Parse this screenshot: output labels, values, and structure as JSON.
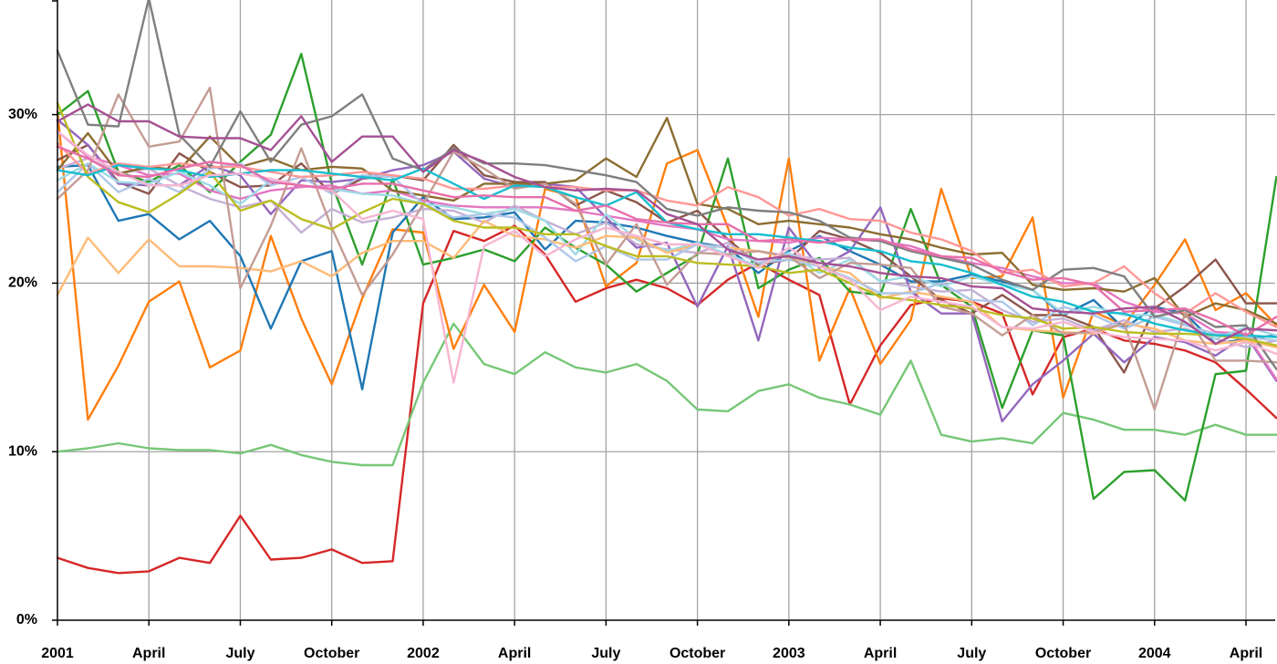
{
  "chart_data": {
    "type": "line",
    "title": "",
    "xlabel": "",
    "ylabel": "",
    "x": [
      "2001-01",
      "2001-02",
      "2001-03",
      "2001-04",
      "2001-05",
      "2001-06",
      "2001-07",
      "2001-08",
      "2001-09",
      "2001-10",
      "2001-11",
      "2001-12",
      "2002-01",
      "2002-02",
      "2002-03",
      "2002-04",
      "2002-05",
      "2002-06",
      "2002-07",
      "2002-08",
      "2002-09",
      "2002-10",
      "2002-11",
      "2002-12",
      "2003-01",
      "2003-02",
      "2003-03",
      "2003-04",
      "2003-05",
      "2003-06",
      "2003-07",
      "2003-08",
      "2003-09",
      "2003-10",
      "2003-11",
      "2003-12",
      "2004-01",
      "2004-02",
      "2004-03",
      "2004-04",
      "2004-05"
    ],
    "x_ticks": [
      {
        "label": "2001",
        "x": "2001-01"
      },
      {
        "label": "April",
        "x": "2001-04"
      },
      {
        "label": "July",
        "x": "2001-07"
      },
      {
        "label": "October",
        "x": "2001-10"
      },
      {
        "label": "2002",
        "x": "2002-01"
      },
      {
        "label": "April",
        "x": "2002-04"
      },
      {
        "label": "July",
        "x": "2002-07"
      },
      {
        "label": "October",
        "x": "2002-10"
      },
      {
        "label": "2003",
        "x": "2003-01"
      },
      {
        "label": "April",
        "x": "2003-04"
      },
      {
        "label": "July",
        "x": "2003-07"
      },
      {
        "label": "October",
        "x": "2003-10"
      },
      {
        "label": "2004",
        "x": "2004-01"
      },
      {
        "label": "April",
        "x": "2004-04"
      }
    ],
    "y_ticks": [
      {
        "label": "0%",
        "value": 0
      },
      {
        "label": "10%",
        "value": 10
      },
      {
        "label": "20%",
        "value": 20
      },
      {
        "label": "30%",
        "value": 30
      }
    ],
    "ylim": [
      0,
      36.8
    ],
    "x_grid": true,
    "y_grid": true,
    "legend": "none",
    "series": [
      {
        "color": "#d62728",
        "values": [
          3.7,
          3.1,
          2.8,
          2.9,
          3.7,
          3.4,
          6.2,
          3.6,
          3.7,
          4.2,
          3.4,
          3.5,
          18.8,
          23.1,
          22.5,
          23.4,
          21.7,
          18.9,
          19.7,
          20.2,
          19.7,
          18.7,
          20.2,
          21.2,
          20.2,
          19.3,
          12.8,
          16.3,
          18.7,
          19.1,
          18.9,
          18.2,
          13.4,
          16.8,
          17.3,
          16.6,
          16.4,
          16.0,
          15.3,
          13.7,
          12.0
        ]
      },
      {
        "color": "#77c777",
        "values": [
          10.0,
          10.2,
          10.5,
          10.2,
          10.1,
          10.1,
          9.9,
          10.4,
          9.8,
          9.4,
          9.2,
          9.2,
          14.1,
          17.6,
          15.2,
          14.6,
          15.9,
          15.0,
          14.7,
          15.2,
          14.2,
          12.5,
          12.4,
          13.6,
          14.0,
          13.2,
          12.8,
          12.2,
          15.4,
          11.0,
          10.6,
          10.8,
          10.5,
          12.3,
          11.9,
          11.3,
          11.3,
          11.0,
          11.6,
          11.0,
          11.0
        ]
      },
      {
        "color": "#ff7f0e",
        "values": [
          30.2,
          11.9,
          15.1,
          18.9,
          20.1,
          15.0,
          16.0,
          22.8,
          17.9,
          14.0,
          19.1,
          23.2,
          23.0,
          16.1,
          19.9,
          17.1,
          25.6,
          25.1,
          19.8,
          21.2,
          27.1,
          27.9,
          23.3,
          18.0,
          27.4,
          15.4,
          19.7,
          15.2,
          17.8,
          25.6,
          20.3,
          20.4,
          23.9,
          13.2,
          18.3,
          17.5,
          19.9,
          22.6,
          18.4,
          19.4,
          17.5
        ]
      },
      {
        "color": "#2ca02c",
        "values": [
          30.0,
          31.4,
          26.6,
          26.0,
          27.0,
          25.4,
          27.2,
          28.8,
          33.6,
          25.9,
          21.1,
          26.2,
          21.1,
          21.5,
          22.0,
          21.3,
          23.3,
          22.1,
          21.1,
          19.5,
          20.6,
          21.7,
          27.4,
          19.7,
          20.8,
          21.5,
          19.5,
          19.3,
          24.4,
          19.9,
          18.6,
          12.6,
          17.2,
          16.9,
          7.2,
          8.8,
          8.9,
          7.1,
          14.6,
          14.8,
          26.3
        ]
      },
      {
        "color": "#1f77b4",
        "values": [
          26.9,
          27.0,
          23.7,
          24.1,
          22.6,
          23.7,
          21.6,
          17.3,
          21.3,
          21.9,
          13.7,
          23.0,
          25.1,
          23.8,
          23.9,
          24.2,
          22.0,
          23.7,
          23.6,
          23.3,
          22.8,
          22.4,
          22.1,
          20.6,
          21.9,
          22.8,
          21.9,
          21.1,
          20.1,
          20.1,
          20.5,
          20.1,
          19.6,
          18.1,
          19.0,
          17.3,
          18.6,
          18.2,
          16.4,
          16.7,
          16.9
        ]
      },
      {
        "color": "#8c564b",
        "values": [
          27.3,
          28.2,
          26.0,
          25.3,
          27.7,
          26.6,
          25.7,
          25.8,
          27.1,
          25.3,
          26.2,
          26.4,
          26.1,
          28.2,
          26.4,
          26.0,
          26.0,
          24.6,
          25.5,
          24.8,
          23.6,
          24.3,
          22.6,
          21.1,
          21.4,
          23.1,
          22.6,
          21.8,
          20.4,
          19.0,
          18.2,
          19.3,
          18.1,
          18.1,
          17.4,
          14.7,
          18.5,
          19.8,
          21.4,
          18.8,
          18.8
        ]
      },
      {
        "color": "#9467bd",
        "values": [
          29.7,
          28.2,
          25.9,
          25.8,
          25.8,
          27.0,
          26.4,
          24.1,
          26.1,
          26.0,
          26.2,
          26.7,
          27.0,
          27.8,
          26.2,
          25.7,
          25.9,
          25.7,
          23.9,
          22.1,
          22.4,
          18.6,
          22.2,
          16.6,
          23.3,
          20.9,
          21.9,
          24.5,
          19.5,
          18.2,
          18.2,
          11.8,
          14.0,
          15.4,
          17.0,
          15.3,
          16.8,
          16.5,
          15.7,
          16.9,
          14.2
        ]
      },
      {
        "color": "#e377c2",
        "values": [
          29.0,
          27.5,
          27.0,
          26.4,
          26.5,
          25.5,
          25.0,
          25.5,
          25.7,
          25.8,
          25.3,
          25.5,
          24.9,
          24.6,
          24.5,
          24.5,
          24.5,
          24.3,
          24.0,
          23.7,
          23.4,
          23.2,
          22.6,
          22.5,
          22.4,
          22.7,
          22.6,
          22.5,
          22.2,
          21.6,
          21.2,
          20.9,
          20.4,
          20.0,
          20.0,
          18.9,
          18.3,
          18.2,
          17.1,
          17.0,
          14.3
        ]
      },
      {
        "color": "#c5b0d5",
        "values": [
          26.8,
          27.4,
          26.5,
          26.8,
          25.8,
          25.0,
          24.5,
          24.9,
          23.0,
          24.4,
          23.6,
          23.9,
          24.4,
          24.3,
          23.6,
          24.6,
          23.7,
          22.9,
          23.6,
          22.3,
          22.0,
          21.8,
          22.4,
          21.2,
          21.7,
          21.4,
          21.5,
          20.1,
          19.8,
          19.5,
          19.6,
          18.4,
          17.7,
          17.9,
          17.2,
          17.8,
          17.1,
          17.3,
          16.7,
          16.2,
          16.6
        ]
      },
      {
        "color": "#8c6d31",
        "values": [
          26.7,
          28.9,
          26.5,
          26.9,
          26.7,
          28.7,
          26.9,
          27.4,
          26.7,
          26.9,
          26.8,
          25.5,
          25.2,
          24.9,
          25.9,
          25.9,
          25.9,
          26.1,
          27.4,
          26.3,
          29.8,
          24.7,
          24.4,
          23.5,
          23.7,
          23.5,
          23.3,
          22.9,
          22.6,
          22.1,
          21.7,
          21.8,
          19.9,
          19.6,
          19.7,
          19.5,
          20.3,
          18.0,
          18.8,
          18.4,
          17.6
        ]
      },
      {
        "color": "#9edae5",
        "values": [
          26.1,
          27.1,
          26.0,
          25.9,
          26.6,
          25.8,
          24.7,
          26.1,
          25.8,
          25.6,
          25.3,
          25.2,
          24.7,
          24.5,
          24.1,
          24.4,
          23.7,
          21.7,
          24.1,
          22.6,
          21.9,
          22.4,
          21.7,
          21.0,
          21.8,
          20.6,
          21.4,
          20.1,
          20.4,
          19.8,
          20.4,
          19.9,
          19.6,
          18.2,
          18.6,
          18.1,
          18.1,
          17.6,
          16.7,
          17.4,
          16.9
        ]
      },
      {
        "color": "#ffbb78",
        "values": [
          19.3,
          22.7,
          20.6,
          22.6,
          21.0,
          21.0,
          20.9,
          20.7,
          21.3,
          20.4,
          21.8,
          22.5,
          22.5,
          21.5,
          23.7,
          22.8,
          22.6,
          22.1,
          22.8,
          22.7,
          21.8,
          22.3,
          22.1,
          21.9,
          21.5,
          21.0,
          20.6,
          19.1,
          19.5,
          19.2,
          18.9,
          17.4,
          17.2,
          17.1,
          17.0,
          17.6,
          17.3,
          16.6,
          16.4,
          16.6,
          16.2
        ]
      },
      {
        "color": "#aec7e8",
        "values": [
          25.4,
          27.1,
          25.4,
          26.2,
          25.4,
          26.8,
          27.1,
          25.8,
          26.3,
          25.3,
          26.4,
          26.3,
          24.7,
          23.9,
          24.1,
          23.9,
          22.7,
          21.3,
          22.2,
          21.4,
          21.4,
          22.3,
          22.1,
          21.2,
          21.4,
          21.0,
          20.3,
          19.4,
          19.4,
          20.0,
          19.0,
          18.9,
          17.5,
          18.6,
          18.1,
          17.3,
          18.0,
          17.5,
          17.0,
          16.8,
          16.6
        ]
      },
      {
        "color": "#ff9896",
        "values": [
          28.3,
          26.5,
          27.1,
          26.9,
          27.1,
          26.9,
          26.9,
          26.6,
          26.3,
          26.4,
          26.6,
          26.4,
          26.2,
          25.6,
          25.6,
          25.8,
          25.7,
          25.7,
          25.5,
          25.5,
          24.9,
          24.6,
          25.7,
          25.1,
          24.0,
          24.4,
          23.8,
          23.7,
          23.0,
          22.6,
          21.9,
          20.6,
          20.8,
          19.8,
          20.0,
          21.0,
          19.4,
          18.2,
          19.4,
          18.3,
          17.4
        ]
      },
      {
        "color": "#c49c94",
        "values": [
          25.0,
          26.7,
          31.2,
          28.1,
          28.4,
          31.6,
          19.7,
          23.4,
          28.0,
          23.3,
          19.3,
          21.7,
          24.7,
          27.8,
          26.8,
          25.6,
          25.9,
          24.7,
          21.1,
          23.5,
          19.9,
          21.8,
          21.7,
          21.9,
          21.6,
          20.3,
          21.2,
          21.1,
          20.9,
          18.6,
          18.2,
          16.9,
          18.1,
          17.0,
          17.1,
          17.6,
          12.5,
          18.2,
          15.4,
          15.4,
          15.3
        ]
      },
      {
        "color": "#7f7f7f",
        "values": [
          33.8,
          29.4,
          29.3,
          36.9,
          28.8,
          26.9,
          30.2,
          27.2,
          29.4,
          29.9,
          31.2,
          27.4,
          26.7,
          28.0,
          27.1,
          27.1,
          27.0,
          26.7,
          26.4,
          26.0,
          24.4,
          24.0,
          24.5,
          24.3,
          24.2,
          23.7,
          22.7,
          22.5,
          21.9,
          21.5,
          21.1,
          20.2,
          19.6,
          20.8,
          20.9,
          20.4,
          18.0,
          18.4,
          17.4,
          17.5,
          14.9
        ]
      },
      {
        "color": "#bcbd22",
        "values": [
          30.7,
          26.3,
          24.8,
          24.2,
          25.3,
          26.6,
          24.3,
          24.9,
          23.8,
          23.2,
          24.2,
          25.0,
          24.7,
          23.7,
          23.3,
          23.3,
          22.9,
          22.9,
          22.2,
          21.6,
          21.6,
          21.2,
          21.1,
          21.0,
          20.6,
          20.8,
          20.0,
          19.2,
          19.0,
          18.7,
          18.5,
          18.1,
          17.9,
          17.3,
          17.4,
          17.1,
          17.0,
          17.0,
          16.9,
          16.7,
          16.3
        ]
      },
      {
        "color": "#17becf",
        "values": [
          26.7,
          26.4,
          27.0,
          26.8,
          26.7,
          26.3,
          26.5,
          26.7,
          26.7,
          26.5,
          26.3,
          26.1,
          26.8,
          25.9,
          25.0,
          25.8,
          25.7,
          25.1,
          24.6,
          25.4,
          23.6,
          23.2,
          22.9,
          22.9,
          22.7,
          22.5,
          22.1,
          21.9,
          21.3,
          21.1,
          20.6,
          19.9,
          19.2,
          18.9,
          18.3,
          18.2,
          17.6,
          17.2,
          16.9,
          16.9,
          16.8
        ]
      },
      {
        "color": "#f7b6d2",
        "values": [
          29.0,
          27.6,
          26.6,
          25.8,
          25.8,
          26.4,
          26.5,
          26.2,
          25.8,
          25.5,
          23.8,
          24.3,
          23.8,
          14.1,
          22.2,
          23.1,
          21.6,
          22.6,
          23.3,
          22.8,
          22.3,
          22.3,
          21.6,
          20.9,
          22.1,
          21.0,
          20.2,
          18.4,
          19.2,
          18.9,
          18.6,
          17.4,
          17.3,
          17.7,
          17.1,
          16.8,
          16.7,
          16.6,
          16.0,
          16.5,
          15.8
        ]
      },
      {
        "color": "#e76faa",
        "values": [
          28.1,
          27.4,
          26.4,
          26.3,
          26.8,
          27.2,
          27.0,
          26.0,
          25.8,
          25.6,
          25.9,
          25.9,
          25.5,
          25.1,
          25.2,
          25.1,
          25.1,
          24.3,
          24.6,
          23.8,
          23.6,
          23.5,
          23.5,
          22.5,
          22.6,
          22.4,
          22.6,
          22.6,
          22.0,
          21.6,
          21.5,
          20.7,
          20.2,
          20.3,
          19.9,
          18.3,
          18.4,
          18.5,
          17.8,
          16.9,
          18.0
        ]
      },
      {
        "color": "#a55194",
        "values": [
          29.6,
          30.6,
          29.6,
          29.6,
          28.7,
          28.6,
          28.6,
          27.9,
          29.9,
          27.2,
          28.7,
          28.7,
          26.6,
          27.9,
          27.2,
          26.3,
          25.7,
          25.5,
          25.6,
          25.5,
          24.1,
          23.5,
          22.0,
          21.4,
          21.6,
          21.2,
          21.0,
          20.6,
          20.4,
          20.3,
          19.8,
          19.7,
          18.5,
          18.3,
          18.2,
          18.5,
          18.6,
          17.7,
          16.4,
          17.3,
          17.2
        ]
      }
    ]
  }
}
